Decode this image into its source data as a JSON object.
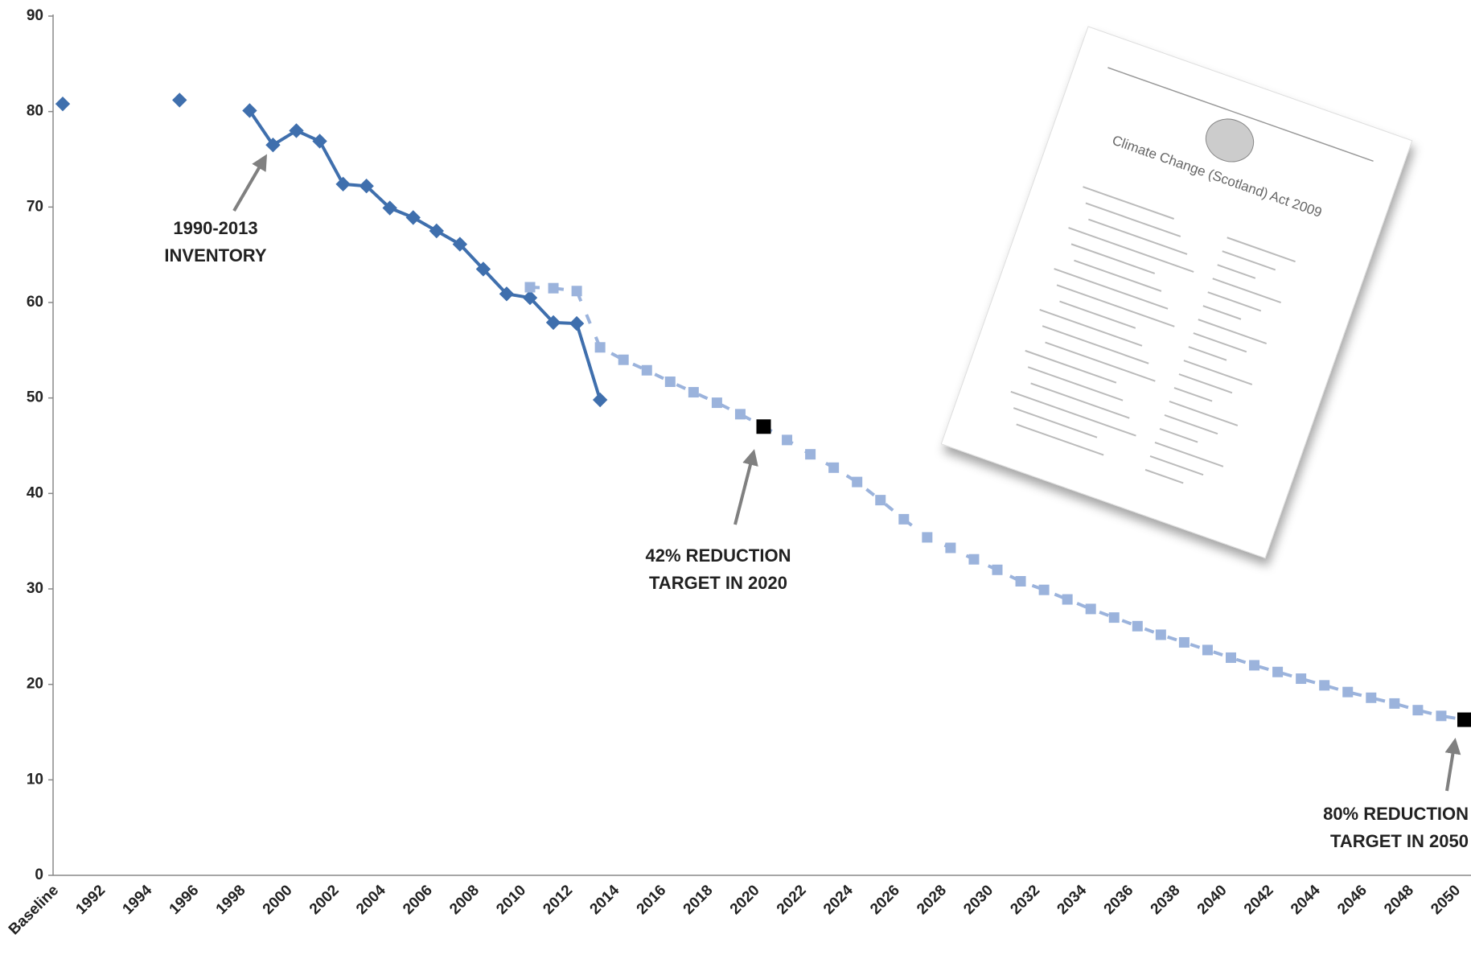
{
  "chart_data": {
    "type": "line",
    "categories": [
      "Baseline",
      null,
      "1992",
      null,
      "1994",
      null,
      "1996",
      null,
      "1998",
      null,
      "2000",
      null,
      "2002",
      null,
      "2004",
      null,
      "2006",
      null,
      "2008",
      null,
      "2010",
      null,
      "2012",
      null,
      "2014",
      null,
      "2016",
      null,
      "2018",
      null,
      "2020",
      null,
      "2022",
      null,
      "2024",
      null,
      "2026",
      null,
      "2028",
      null,
      "2030",
      null,
      "2032",
      null,
      "2034",
      null,
      "2036",
      null,
      "2038",
      null,
      "2040",
      null,
      "2042",
      null,
      "2044",
      null,
      "2046",
      null,
      "2048",
      null,
      "2050"
    ],
    "series": [
      {
        "color": "#3f6fad",
        "marker": "diamond",
        "line": "solid",
        "values": [
          80.8,
          null,
          null,
          null,
          null,
          81.2,
          null,
          null,
          80.1,
          76.5,
          78.0,
          76.9,
          72.4,
          72.2,
          69.9,
          68.9,
          67.5,
          66.1,
          63.5,
          60.9,
          60.5,
          57.9,
          57.8,
          49.8,
          null,
          null,
          null,
          null,
          null,
          null,
          null,
          null,
          null,
          null,
          null,
          null,
          null,
          null,
          null,
          null,
          null,
          null,
          null,
          null,
          null,
          null,
          null,
          null,
          null,
          null,
          null,
          null,
          null,
          null,
          null,
          null,
          null,
          null,
          null,
          null,
          null
        ]
      },
      {
        "color": "#9bb3dc",
        "marker": "square",
        "line": "dashed",
        "values": [
          null,
          null,
          null,
          null,
          null,
          null,
          null,
          null,
          null,
          null,
          null,
          null,
          null,
          null,
          null,
          null,
          null,
          null,
          null,
          null,
          61.6,
          61.5,
          61.2,
          55.3,
          54.0,
          52.9,
          51.7,
          50.6,
          49.5,
          48.3,
          47.0,
          45.6,
          44.1,
          42.7,
          41.2,
          39.3,
          37.3,
          35.4,
          34.3,
          33.1,
          32.0,
          30.8,
          29.9,
          28.9,
          27.9,
          27.0,
          26.1,
          25.2,
          24.4,
          23.6,
          22.8,
          22.0,
          21.3,
          20.6,
          19.9,
          19.2,
          18.6,
          18.0,
          17.3,
          16.7,
          16.3
        ]
      },
      {
        "color": "#000000",
        "marker": "square-large",
        "line": "none",
        "values": [
          null,
          null,
          null,
          null,
          null,
          null,
          null,
          null,
          null,
          null,
          null,
          null,
          null,
          null,
          null,
          null,
          null,
          null,
          null,
          null,
          null,
          null,
          null,
          null,
          null,
          null,
          null,
          null,
          null,
          null,
          47.0,
          null,
          null,
          null,
          null,
          null,
          null,
          null,
          null,
          null,
          null,
          null,
          null,
          null,
          null,
          null,
          null,
          null,
          null,
          null,
          null,
          null,
          null,
          null,
          null,
          null,
          null,
          null,
          null,
          null,
          16.3
        ]
      }
    ],
    "ylim": [
      0,
      90
    ],
    "yticks": [
      0,
      10,
      20,
      30,
      40,
      50,
      60,
      70,
      80,
      90
    ],
    "grid": false,
    "annotations": [
      {
        "lines": [
          "1990-2013",
          "INVENTORY"
        ]
      },
      {
        "lines": [
          "42% REDUCTION",
          "TARGET IN 2020"
        ]
      },
      {
        "lines": [
          "80% REDUCTION",
          "TARGET IN 2050"
        ]
      }
    ],
    "inset_title": "Climate Change (Scotland) Act 2009"
  }
}
